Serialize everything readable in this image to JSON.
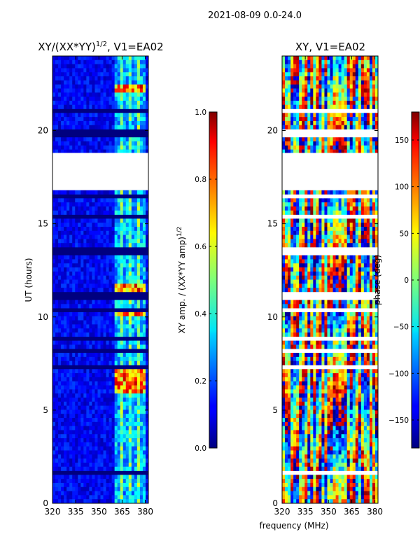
{
  "suptitle": "2021-08-09 0.0-24.0",
  "chart_data": [
    {
      "type": "heatmap",
      "title_main": "XY/(XX*YY)",
      "title_exp": "1/2",
      "title_suffix": ", V1=EA02",
      "xlabel": "",
      "ylabel": "UT (hours)",
      "xlim": [
        320,
        382
      ],
      "ylim": [
        0,
        24
      ],
      "xticks": [
        320,
        335,
        350,
        365,
        380
      ],
      "yticks": [
        0,
        5,
        10,
        15,
        20
      ],
      "colormap": "jet",
      "colorbar": {
        "label_main": "XY amp. / (XX*YY amp)",
        "label_exp": "1/2",
        "range": [
          0.0,
          1.0
        ],
        "ticks": [
          "0.0",
          "0.2",
          "0.4",
          "0.6",
          "0.8",
          "1.0"
        ],
        "tick_values": [
          0.0,
          0.2,
          0.4,
          0.6,
          0.8,
          1.0
        ]
      },
      "data_gap_hours": [
        18.8,
        16.8
      ],
      "bright_channel_band_mhz": [
        360,
        381
      ],
      "high_amplitude_times_hours": [
        10.3,
        11.6,
        6.9,
        6.2,
        22.3
      ]
    },
    {
      "type": "heatmap",
      "title": "XY, V1=EA02",
      "xlabel": "frequency (MHz)",
      "ylabel": "",
      "xlim": [
        320,
        382
      ],
      "ylim": [
        0,
        24
      ],
      "xticks": [
        320,
        335,
        350,
        365,
        380
      ],
      "yticks": [
        0,
        5,
        10,
        15,
        20
      ],
      "colormap": "jet",
      "colorbar": {
        "label": "phase (deg)",
        "range": [
          -180,
          180
        ],
        "ticks": [
          "−150",
          "−100",
          "−50",
          "0",
          "50",
          "100",
          "150"
        ],
        "tick_values": [
          -150,
          -100,
          -50,
          0,
          50,
          100,
          150
        ]
      },
      "data_gap_hours": [
        18.8,
        16.8
      ]
    }
  ]
}
